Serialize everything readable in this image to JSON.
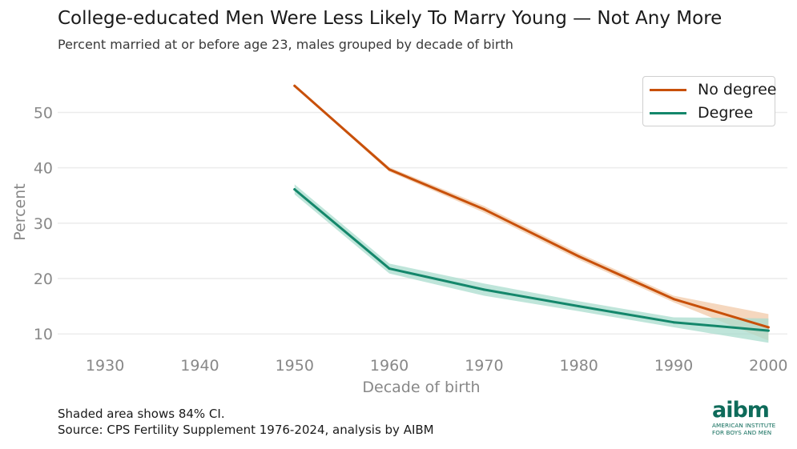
{
  "title": "College-educated Men Were Less Likely To Marry Young — Not Any More",
  "subtitle": "Percent married at or before age 23, males grouped by decade of birth",
  "footer": {
    "note": "Shaded area shows 84% CI.",
    "source": "Source: CPS Fertility Supplement 1976-2024, analysis by AIBM"
  },
  "logo": {
    "mark": "aibm",
    "line1": "AMERICAN INSTITUTE",
    "line2": "FOR BOYS AND MEN"
  },
  "colors": {
    "no_degree": "#c8500a",
    "degree": "#14876b",
    "no_degree_band": "#f2c9a8",
    "degree_band": "#a9dccd",
    "grid": "#ececec",
    "axis_text": "#888888"
  },
  "chart_data": {
    "type": "line",
    "title": "College-educated Men Were Less Likely To Marry Young — Not Any More",
    "subtitle": "Percent married at or before age 23, males grouped by decade of birth",
    "xlabel": "Decade of birth",
    "ylabel": "Percent",
    "xlim": [
      1925,
      2002
    ],
    "ylim": [
      7,
      57
    ],
    "xticks": [
      1930,
      1940,
      1950,
      1960,
      1970,
      1980,
      1990,
      2000
    ],
    "yticks": [
      10,
      20,
      30,
      40,
      50
    ],
    "grid": "horizontal",
    "legend_position": "top-right",
    "note": "Shaded area shows 84% CI.",
    "series": [
      {
        "name": "No degree",
        "color": "#c8500a",
        "x": [
          1950,
          1960,
          1970,
          1980,
          1990,
          2000
        ],
        "y": [
          54.8,
          39.7,
          32.5,
          24.0,
          16.3,
          11.2
        ],
        "ci_low": [
          54.6,
          39.3,
          31.9,
          23.4,
          15.7,
          8.8
        ],
        "ci_high": [
          55.0,
          40.1,
          33.1,
          24.6,
          16.9,
          13.6
        ]
      },
      {
        "name": "Degree",
        "color": "#14876b",
        "x": [
          1950,
          1960,
          1970,
          1980,
          1990,
          2000
        ],
        "y": [
          36.1,
          21.8,
          18.0,
          15.0,
          12.1,
          10.6
        ],
        "ci_low": [
          35.2,
          20.9,
          16.9,
          14.1,
          11.2,
          8.4
        ],
        "ci_high": [
          37.0,
          22.7,
          19.1,
          15.9,
          13.0,
          12.8
        ]
      }
    ]
  }
}
